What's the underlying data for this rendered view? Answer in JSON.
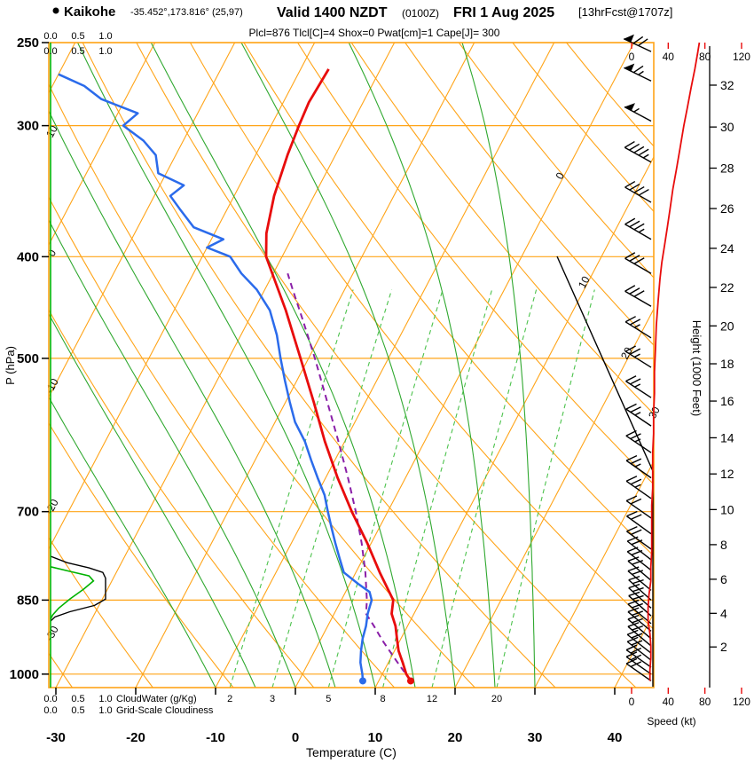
{
  "header": {
    "station": "Kaikohe",
    "coords": "-35.452°,173.816° (25,97)",
    "valid_main": "Valid 1400 NZDT",
    "valid_sub": "(0100Z)",
    "valid_date": "FRI 1 Aug 2025",
    "fcst": "[13hrFcst@1707z]",
    "params": "Plcl=876 Tlcl[C]=4 Shox=0 Pwat[cm]=1 Cape[J]= 300"
  },
  "chart_data": {
    "type": "skewt_log_p_sounding",
    "pressure_range_hpa": [
      1030,
      250
    ],
    "temperature_axis_range_c": [
      -35,
      45
    ],
    "axes": {
      "pressure_label": "P (hPa)",
      "pressure_ticks": [
        250,
        300,
        400,
        500,
        700,
        850,
        1000
      ],
      "temperature_label": "Temperature (C)",
      "temperature_ticks": [
        -30,
        -20,
        -10,
        0,
        10,
        20,
        30,
        40
      ],
      "height_label": "Height (1000 Feet)",
      "height_ticks": [
        2,
        4,
        6,
        8,
        10,
        12,
        14,
        16,
        18,
        20,
        22,
        24,
        26,
        28,
        30,
        32
      ],
      "speed_label": "Speed (kt)",
      "speed_ticks": [
        0,
        40,
        80,
        120
      ],
      "cloud_scale_ticks": [
        "0.0",
        "0.5",
        "1.0"
      ],
      "cloudwater_legend": "CloudWater (g/Kg)",
      "cloudiness_legend": "Grid-Scale Cloudiness"
    },
    "grid": {
      "isotherm_min": -100,
      "isotherm_max": 60,
      "isotherm_step": 10,
      "dry_adiabat_min": -30,
      "dry_adiabat_max": 120,
      "moist_adiabats": [
        -10,
        -5,
        0,
        5,
        10,
        15,
        20,
        25,
        30
      ],
      "mixing_ratios": [
        2,
        3,
        5,
        8,
        12,
        20
      ],
      "isotherm_labels": [
        0,
        10,
        20,
        30
      ],
      "dry_adiabat_labels": [
        0,
        -10,
        -20,
        -30
      ],
      "moist_adiabat_labels": [
        10
      ]
    },
    "temperature_profile": [
      [
        1015,
        14
      ],
      [
        1000,
        13
      ],
      [
        975,
        11.8
      ],
      [
        950,
        10.5
      ],
      [
        925,
        9.5
      ],
      [
        900,
        8.5
      ],
      [
        876,
        7.2
      ],
      [
        850,
        6.5
      ],
      [
        800,
        3
      ],
      [
        750,
        -0.5
      ],
      [
        700,
        -4.5
      ],
      [
        650,
        -8.5
      ],
      [
        600,
        -12.5
      ],
      [
        550,
        -16.5
      ],
      [
        500,
        -21
      ],
      [
        450,
        -26
      ],
      [
        400,
        -32
      ],
      [
        380,
        -33.5
      ],
      [
        350,
        -35
      ],
      [
        320,
        -36
      ],
      [
        300,
        -36.5
      ],
      [
        285,
        -36.8
      ],
      [
        265,
        -36.5
      ]
    ],
    "dewpoint_profile": [
      [
        1015,
        8
      ],
      [
        1000,
        7.5
      ],
      [
        975,
        6.5
      ],
      [
        950,
        5.8
      ],
      [
        925,
        5.2
      ],
      [
        900,
        4.8
      ],
      [
        876,
        4.2
      ],
      [
        850,
        3.8
      ],
      [
        835,
        3
      ],
      [
        820,
        1
      ],
      [
        800,
        -1.5
      ],
      [
        775,
        -3
      ],
      [
        750,
        -4.5
      ],
      [
        725,
        -6
      ],
      [
        700,
        -7.5
      ],
      [
        675,
        -9
      ],
      [
        650,
        -11
      ],
      [
        625,
        -13
      ],
      [
        600,
        -15
      ],
      [
        575,
        -17.5
      ],
      [
        550,
        -19.5
      ],
      [
        525,
        -21.5
      ],
      [
        500,
        -23.5
      ],
      [
        475,
        -25.5
      ],
      [
        450,
        -28
      ],
      [
        430,
        -31
      ],
      [
        415,
        -34
      ],
      [
        400,
        -36.5
      ],
      [
        392,
        -40
      ],
      [
        385,
        -38.5
      ],
      [
        375,
        -43
      ],
      [
        360,
        -46
      ],
      [
        350,
        -48
      ],
      [
        342,
        -47
      ],
      [
        333,
        -51
      ],
      [
        320,
        -52.5
      ],
      [
        310,
        -55
      ],
      [
        300,
        -58.5
      ],
      [
        292,
        -57.5
      ],
      [
        283,
        -63
      ],
      [
        275,
        -66
      ],
      [
        268,
        -70
      ]
    ],
    "parcel_profile": [
      [
        1015,
        14
      ],
      [
        970,
        10.8
      ],
      [
        930,
        7.9
      ],
      [
        900,
        5.8
      ],
      [
        876,
        4
      ],
      [
        850,
        3.2
      ],
      [
        800,
        1.2
      ],
      [
        750,
        -1.2
      ],
      [
        700,
        -4
      ],
      [
        650,
        -7.2
      ],
      [
        600,
        -10.8
      ],
      [
        550,
        -14.8
      ],
      [
        500,
        -19.2
      ],
      [
        460,
        -23.2
      ],
      [
        430,
        -26.5
      ],
      [
        415,
        -28.2
      ]
    ],
    "surface_points": {
      "pressure": 1015,
      "temperature": 14,
      "dewpoint": 8
    },
    "wind_barbs": [
      [
        1015,
        305,
        20
      ],
      [
        1000,
        305,
        20
      ],
      [
        985,
        305,
        20
      ],
      [
        970,
        308,
        20
      ],
      [
        955,
        308,
        20
      ],
      [
        940,
        310,
        20
      ],
      [
        925,
        310,
        20
      ],
      [
        910,
        310,
        18
      ],
      [
        895,
        310,
        18
      ],
      [
        880,
        312,
        18
      ],
      [
        865,
        312,
        18
      ],
      [
        850,
        312,
        18
      ],
      [
        832,
        310,
        20
      ],
      [
        814,
        310,
        20
      ],
      [
        796,
        308,
        20
      ],
      [
        778,
        308,
        22
      ],
      [
        760,
        306,
        22
      ],
      [
        735,
        306,
        22
      ],
      [
        710,
        305,
        22
      ],
      [
        680,
        305,
        23
      ],
      [
        650,
        305,
        23
      ],
      [
        615,
        304,
        24
      ],
      [
        580,
        304,
        24
      ],
      [
        545,
        303,
        25
      ],
      [
        510,
        302,
        25
      ],
      [
        478,
        302,
        26
      ],
      [
        446,
        300,
        28
      ],
      [
        415,
        300,
        32
      ],
      [
        385,
        300,
        36
      ],
      [
        355,
        300,
        42
      ],
      [
        325,
        299,
        47
      ],
      [
        297,
        298,
        55
      ],
      [
        272,
        296,
        65
      ],
      [
        255,
        295,
        72
      ]
    ],
    "wind_speed_profile": [
      [
        1015,
        20
      ],
      [
        990,
        20
      ],
      [
        965,
        21
      ],
      [
        940,
        21
      ],
      [
        915,
        20
      ],
      [
        890,
        18
      ],
      [
        865,
        18
      ],
      [
        840,
        19
      ],
      [
        815,
        21
      ],
      [
        790,
        21
      ],
      [
        765,
        22
      ],
      [
        740,
        22
      ],
      [
        715,
        22
      ],
      [
        690,
        22
      ],
      [
        665,
        23
      ],
      [
        640,
        23
      ],
      [
        615,
        23
      ],
      [
        590,
        24
      ],
      [
        565,
        24
      ],
      [
        540,
        25
      ],
      [
        515,
        25
      ],
      [
        490,
        26
      ],
      [
        465,
        27
      ],
      [
        440,
        29
      ],
      [
        420,
        31
      ],
      [
        405,
        33
      ],
      [
        390,
        36
      ],
      [
        375,
        39
      ],
      [
        360,
        42
      ],
      [
        345,
        45
      ],
      [
        330,
        49
      ],
      [
        315,
        53
      ],
      [
        300,
        57
      ],
      [
        288,
        61
      ],
      [
        276,
        65
      ],
      [
        265,
        69
      ],
      [
        256,
        72
      ],
      [
        250,
        74
      ]
    ],
    "cloudiness_profile": [
      [
        772,
        0
      ],
      [
        783,
        0.3
      ],
      [
        792,
        0.7
      ],
      [
        800,
        0.95
      ],
      [
        810,
        1.0
      ],
      [
        848,
        1.0
      ],
      [
        860,
        0.8
      ],
      [
        872,
        0.35
      ],
      [
        882,
        0.08
      ],
      [
        890,
        0
      ]
    ],
    "cloudwater_profile": [
      [
        790,
        0
      ],
      [
        798,
        0.35
      ],
      [
        806,
        0.7
      ],
      [
        815,
        0.78
      ],
      [
        830,
        0.6
      ],
      [
        848,
        0.35
      ],
      [
        865,
        0.15
      ],
      [
        878,
        0.04
      ],
      [
        886,
        0
      ]
    ]
  },
  "style": {
    "colors": {
      "grid": "#FFA418",
      "moist": "#2FA82F",
      "mixing": "#4CC24C",
      "temp": "#E80C0C",
      "dew": "#2B6BEB",
      "parcel": "#8A1FA8",
      "cloudwater": "#00B200",
      "params": "#FF00FF",
      "black": "#000000"
    }
  }
}
